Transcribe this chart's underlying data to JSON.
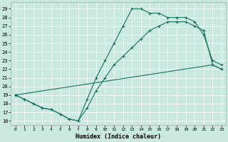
{
  "xlabel": "Humidex (Indice chaleur)",
  "bg_color": "#c8e8e0",
  "grid_color": "#b0d8d0",
  "line_color": "#1a7060",
  "xlim": [
    -0.5,
    23.5
  ],
  "ylim": [
    15.5,
    29.8
  ],
  "xticks": [
    0,
    1,
    2,
    3,
    4,
    5,
    6,
    7,
    8,
    9,
    10,
    11,
    12,
    13,
    14,
    15,
    16,
    17,
    18,
    19,
    20,
    21,
    22,
    23
  ],
  "yticks": [
    16,
    17,
    18,
    19,
    20,
    21,
    22,
    23,
    24,
    25,
    26,
    27,
    28,
    29
  ],
  "line1_x": [
    0,
    1,
    2,
    3,
    4,
    5,
    6,
    7,
    8,
    9,
    10,
    11,
    12,
    13,
    14,
    15,
    16,
    17,
    18,
    19,
    20,
    21,
    22,
    23
  ],
  "line1_y": [
    19.0,
    18.5,
    18.0,
    17.5,
    17.3,
    16.8,
    16.2,
    16.0,
    18.5,
    21.0,
    23.0,
    25.0,
    27.0,
    29.0,
    29.0,
    28.5,
    28.5,
    28.0,
    28.0,
    28.0,
    27.5,
    26.0,
    23.0,
    22.5
  ],
  "line2_x": [
    0,
    22,
    23
  ],
  "line2_y": [
    19.0,
    22.5,
    22.0
  ],
  "line3_x": [
    0,
    1,
    2,
    3,
    4,
    5,
    6,
    7,
    8,
    9,
    10,
    11,
    12,
    13,
    14,
    15,
    16,
    17,
    18,
    19,
    20,
    21,
    22,
    23
  ],
  "line3_y": [
    19.0,
    18.5,
    18.0,
    17.5,
    17.3,
    16.8,
    16.2,
    16.0,
    17.5,
    19.5,
    21.0,
    22.5,
    23.5,
    24.5,
    25.5,
    26.5,
    27.0,
    27.5,
    27.5,
    27.5,
    27.0,
    26.5,
    22.5,
    22.0
  ]
}
